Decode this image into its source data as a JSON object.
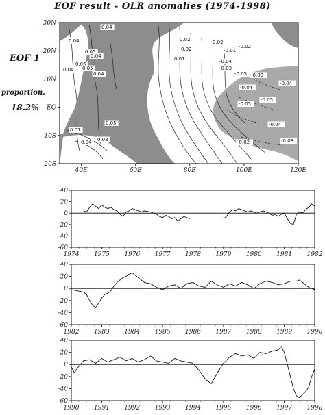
{
  "title": "EOF result - OLR anomalies (1974-1998)",
  "mode_label": "EOF 1",
  "proportion_label": "proportion.",
  "proportion_value": "18.2%",
  "map": {
    "x_ticks": [
      "40E",
      "60E",
      "80E",
      "100E",
      "120E"
    ],
    "y_ticks": [
      "30N",
      "20N",
      "10N",
      "EQ",
      "10S",
      "20S"
    ],
    "contour_labels": [
      "0.04",
      "0.04",
      "0.05",
      "0.04",
      "0.06",
      "0.04",
      "0.04",
      "0.05",
      "0.05",
      "0.01",
      "0.04",
      "0.03",
      "0.02",
      "0.02",
      "0.01",
      "0.02",
      "-0.01",
      "-0.02",
      "-0.04",
      "-0.03",
      "-0.05",
      "-0.03",
      "-0.04",
      "-0.04",
      "-0.05",
      "-0.05",
      "-0.04",
      "-0.03",
      "-0.02"
    ]
  },
  "chart_data": [
    {
      "type": "line",
      "xlim": [
        1974,
        1982
      ],
      "ylim": [
        -60,
        40
      ],
      "x_ticks": [
        "1974",
        "1975",
        "1976",
        "1977",
        "1978",
        "1979",
        "1980",
        "1981",
        "1982"
      ],
      "y_ticks": [
        "40",
        "20",
        "0",
        "-20",
        "-40",
        "-60"
      ],
      "series": [
        {
          "x": [
            1974.4,
            1974.5,
            1974.6,
            1974.7,
            1974.8,
            1974.9,
            1975.0,
            1975.1,
            1975.2,
            1975.3,
            1975.4,
            1975.5,
            1975.6,
            1975.7,
            1975.8,
            1975.9,
            1976.0,
            1976.1,
            1976.2,
            1976.3,
            1976.4,
            1976.5,
            1976.6,
            1976.7,
            1976.8,
            1976.9,
            1977.0,
            1977.1,
            1977.2,
            1977.3,
            1977.4,
            1977.5,
            1977.6,
            1977.7,
            1977.8,
            1977.9
          ],
          "y": [
            4,
            2,
            10,
            16,
            12,
            8,
            14,
            10,
            8,
            10,
            6,
            4,
            -2,
            -6,
            2,
            4,
            8,
            6,
            4,
            2,
            4,
            3,
            2,
            0,
            -2,
            -6,
            -8,
            -4,
            -6,
            -10,
            -8,
            -14,
            -10,
            -6,
            -8,
            -10
          ]
        },
        {
          "x": [
            1979.0,
            1979.1,
            1979.2,
            1979.3,
            1979.4,
            1979.5,
            1979.6,
            1979.7,
            1979.8,
            1979.9,
            1980.0,
            1980.1,
            1980.2,
            1980.3,
            1980.4,
            1980.5,
            1980.6,
            1980.7,
            1980.8,
            1980.9,
            1981.0,
            1981.1,
            1981.2,
            1981.3,
            1981.4,
            1981.5,
            1981.6,
            1981.7,
            1981.8,
            1981.9,
            1982.0
          ],
          "y": [
            -10,
            -6,
            2,
            6,
            4,
            8,
            6,
            4,
            2,
            4,
            2,
            0,
            2,
            4,
            2,
            0,
            -4,
            -2,
            -6,
            -2,
            0,
            -10,
            -18,
            -20,
            -2,
            2,
            0,
            6,
            10,
            16,
            12
          ]
        }
      ]
    },
    {
      "type": "line",
      "xlim": [
        1982,
        1990
      ],
      "ylim": [
        -60,
        40
      ],
      "x_ticks": [
        "1982",
        "1983",
        "1984",
        "1985",
        "1986",
        "1987",
        "1988",
        "1989",
        "1990"
      ],
      "y_ticks": [
        "40",
        "20",
        "0",
        "-20",
        "-40",
        "-60"
      ],
      "series": [
        {
          "x": [
            1982.0,
            1982.2,
            1982.4,
            1982.5,
            1982.6,
            1982.7,
            1982.8,
            1982.9,
            1983.0,
            1983.1,
            1983.2,
            1983.3,
            1983.4,
            1983.5,
            1983.6,
            1983.7,
            1983.8,
            1983.9,
            1984.0,
            1984.1,
            1984.2,
            1984.3,
            1984.4,
            1984.6,
            1984.8,
            1985.0,
            1985.2,
            1985.4,
            1985.6,
            1985.8,
            1986.0,
            1986.2,
            1986.4,
            1986.6,
            1986.8,
            1987.0,
            1987.2,
            1987.4,
            1987.6,
            1987.8,
            1988.0,
            1988.2,
            1988.4,
            1988.6,
            1988.8,
            1989.0,
            1989.2,
            1989.4,
            1989.5,
            1989.6,
            1989.7,
            1989.8,
            1990.0
          ],
          "y": [
            -2,
            -4,
            -6,
            -10,
            -20,
            -28,
            -32,
            -24,
            -16,
            -10,
            -8,
            -4,
            4,
            10,
            14,
            18,
            20,
            24,
            26,
            22,
            18,
            14,
            10,
            8,
            2,
            -2,
            4,
            6,
            0,
            8,
            10,
            4,
            2,
            12,
            6,
            2,
            8,
            4,
            10,
            6,
            0,
            8,
            12,
            10,
            6,
            8,
            12,
            12,
            14,
            10,
            6,
            2,
            -2
          ]
        }
      ]
    },
    {
      "type": "line",
      "xlim": [
        1990,
        1998
      ],
      "ylim": [
        -60,
        40
      ],
      "x_ticks": [
        "1990",
        "1991",
        "1992",
        "1993",
        "1994",
        "1995",
        "1996",
        "1997",
        "1998"
      ],
      "y_ticks": [
        "40",
        "20",
        "0",
        "-20",
        "-40",
        "-60"
      ],
      "series": [
        {
          "x": [
            1990.0,
            1990.1,
            1990.2,
            1990.3,
            1990.4,
            1990.6,
            1990.8,
            1991.0,
            1991.2,
            1991.4,
            1991.6,
            1991.8,
            1992.0,
            1992.2,
            1992.4,
            1992.6,
            1992.8,
            1993.0,
            1993.2,
            1993.4,
            1993.6,
            1993.8,
            1994.0,
            1994.2,
            1994.4,
            1994.6,
            1994.8,
            1995.0,
            1995.2,
            1995.4,
            1995.6,
            1995.8,
            1996.0,
            1996.2,
            1996.4,
            1996.6,
            1996.8,
            1996.9,
            1997.0,
            1997.1,
            1997.2,
            1997.3,
            1997.4,
            1997.5,
            1997.6,
            1997.7,
            1997.8,
            1997.9,
            1998.0
          ],
          "y": [
            -4,
            -14,
            -6,
            0,
            6,
            8,
            2,
            10,
            4,
            8,
            12,
            6,
            10,
            4,
            8,
            14,
            6,
            4,
            2,
            10,
            6,
            4,
            2,
            -10,
            -24,
            -32,
            -14,
            2,
            12,
            18,
            14,
            16,
            10,
            20,
            18,
            22,
            24,
            30,
            20,
            0,
            -20,
            -40,
            -52,
            -55,
            -50,
            -45,
            -38,
            -20,
            -8
          ]
        }
      ]
    }
  ]
}
